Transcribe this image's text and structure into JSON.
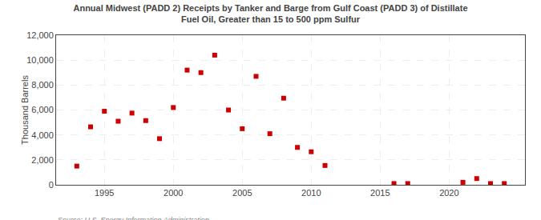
{
  "chart_data": {
    "type": "scatter",
    "title": "Annual Midwest (PADD 2) Receipts by Tanker and Barge from Gulf Coast (PADD 3) of Distillate\nFuel Oil, Greater than 15 to 500 ppm Sulfur",
    "ylabel": "Thousand Barrels",
    "source": "Source: U.S. Energy Information Administration",
    "x": [
      1993,
      1994,
      1995,
      1996,
      1997,
      1998,
      1999,
      2000,
      2001,
      2002,
      2003,
      2004,
      2005,
      2006,
      2007,
      2008,
      2009,
      2010,
      2011,
      2016,
      2017,
      2021,
      2022,
      2023,
      2024
    ],
    "values": [
      1500,
      4650,
      5900,
      5100,
      5750,
      5150,
      3700,
      6200,
      9200,
      9000,
      10400,
      6000,
      4500,
      8700,
      4100,
      6950,
      3000,
      2650,
      1550,
      100,
      100,
      200,
      500,
      100,
      100
    ],
    "color": "#cc0000",
    "marker": "square",
    "xlim": [
      1991.5,
      2025.5
    ],
    "ylim": [
      0,
      12000
    ],
    "xticks": [
      1995,
      2000,
      2005,
      2010,
      2015,
      2020
    ],
    "yticks": [
      0,
      {
        "value": 2000,
        "label": "2,000"
      },
      {
        "value": 4000,
        "label": "4,000"
      },
      {
        "value": 6000,
        "label": "6,000"
      },
      {
        "value": 8000,
        "label": "8,000"
      },
      {
        "value": 10000,
        "label": "10,000"
      },
      {
        "value": 12000,
        "label": "12,000"
      }
    ],
    "grid": true
  }
}
